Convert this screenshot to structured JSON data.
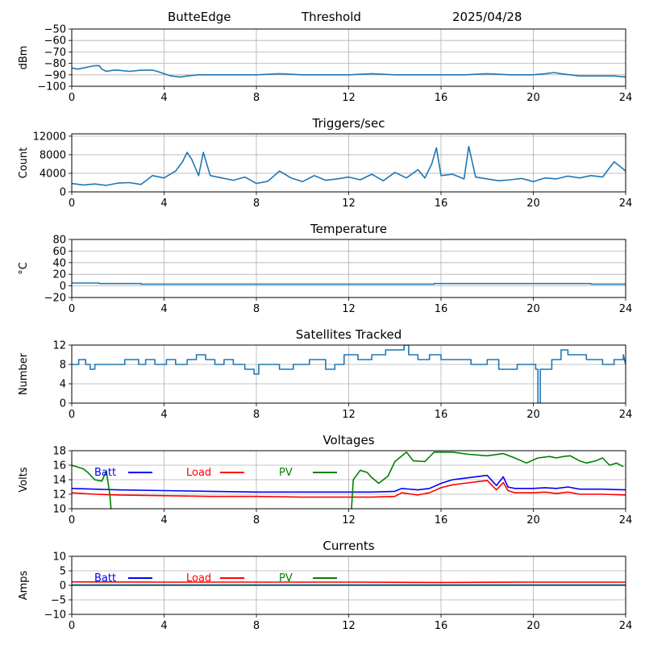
{
  "header": {
    "station": "ButteEdge",
    "mode": "Threshold",
    "date": "2025/04/28"
  },
  "chart_data": [
    {
      "type": "line",
      "title": "",
      "ylabel": "dBm",
      "xlabel": "",
      "xlim": [
        0,
        24
      ],
      "ylim": [
        -100,
        -50
      ],
      "xticks": [
        0,
        4,
        8,
        12,
        16,
        20,
        24
      ],
      "yticks": [
        -100,
        -90,
        -80,
        -70,
        -60,
        -50
      ],
      "grid": true,
      "series": [
        {
          "name": "",
          "color": "#1f77b4",
          "x": [
            0,
            0.25,
            0.5,
            0.75,
            1.0,
            1.2,
            1.3,
            1.5,
            1.8,
            2.0,
            2.5,
            3.0,
            3.5,
            3.7,
            4.0,
            4.3,
            4.7,
            5.0,
            5.5,
            6,
            7,
            8,
            9,
            10,
            11,
            12,
            13,
            14,
            15,
            16,
            17,
            18,
            19,
            20,
            20.5,
            20.9,
            21.2,
            21.6,
            22,
            23,
            23.5,
            24
          ],
          "y": [
            -84,
            -85,
            -84,
            -83,
            -82,
            -82,
            -85,
            -87,
            -86,
            -86,
            -87,
            -86,
            -86,
            -87,
            -89,
            -91,
            -92,
            -91,
            -90,
            -90,
            -90,
            -90,
            -89,
            -90,
            -90,
            -90,
            -89,
            -90,
            -90,
            -90,
            -90,
            -89,
            -90,
            -90,
            -89,
            -88,
            -89,
            -90,
            -91,
            -91,
            -91,
            -92
          ]
        }
      ]
    },
    {
      "type": "line",
      "title": "Triggers/sec",
      "ylabel": "Count",
      "xlabel": "",
      "xlim": [
        0,
        24
      ],
      "ylim": [
        0,
        12500
      ],
      "xticks": [
        0,
        4,
        8,
        12,
        16,
        20,
        24
      ],
      "yticks": [
        0,
        4000,
        8000,
        12000
      ],
      "grid": true,
      "series": [
        {
          "name": "",
          "color": "#1f77b4",
          "x": [
            0,
            0.5,
            1,
            1.5,
            2,
            2.5,
            3,
            3.5,
            4,
            4.5,
            4.8,
            5,
            5.2,
            5.5,
            5.7,
            6,
            6.5,
            7,
            7.5,
            8,
            8.5,
            9,
            9.5,
            10,
            10.5,
            11,
            11.5,
            12,
            12.5,
            13,
            13.5,
            14,
            14.5,
            15,
            15.3,
            15.6,
            15.8,
            16,
            16.5,
            17,
            17.2,
            17.5,
            18,
            18.5,
            19,
            19.5,
            20,
            20.5,
            21,
            21.5,
            22,
            22.5,
            23,
            23.5,
            24
          ],
          "y": [
            1800,
            1500,
            1700,
            1400,
            1900,
            2000,
            1600,
            3500,
            3000,
            4500,
            6500,
            8500,
            7000,
            3500,
            8500,
            3500,
            3000,
            2500,
            3200,
            1800,
            2300,
            4500,
            3000,
            2200,
            3500,
            2500,
            2800,
            3200,
            2600,
            3800,
            2400,
            4200,
            3000,
            4800,
            3000,
            6000,
            9500,
            3500,
            3800,
            2800,
            9800,
            3200,
            2800,
            2400,
            2600,
            2900,
            2200,
            3000,
            2800,
            3400,
            3000,
            3500,
            3200,
            6500,
            4500
          ]
        }
      ]
    },
    {
      "type": "line",
      "title": "Temperature",
      "ylabel": "°C",
      "xlabel": "",
      "xlim": [
        0,
        24
      ],
      "ylim": [
        -20,
        80
      ],
      "xticks": [
        0,
        4,
        8,
        12,
        16,
        20,
        24
      ],
      "yticks": [
        -20,
        0,
        20,
        40,
        60,
        80
      ],
      "grid": true,
      "series": [
        {
          "name": "",
          "color": "#1f77b4",
          "x": [
            0,
            1.2,
            1.2,
            3,
            3,
            15.7,
            15.7,
            22.5,
            22.5,
            24
          ],
          "y": [
            5,
            5,
            4,
            4,
            3,
            3,
            4,
            4,
            3,
            3
          ]
        }
      ]
    },
    {
      "type": "line",
      "title": "Satellites Tracked",
      "ylabel": "Number",
      "xlabel": "",
      "xlim": [
        0,
        24
      ],
      "ylim": [
        0,
        12
      ],
      "xticks": [
        0,
        4,
        8,
        12,
        16,
        20,
        24
      ],
      "yticks": [
        0,
        4,
        8,
        12
      ],
      "grid": true,
      "series": [
        {
          "name": "",
          "color": "#1f77b4",
          "x": [
            0,
            0.3,
            0.3,
            0.6,
            0.6,
            0.8,
            0.8,
            1.0,
            1.0,
            2.3,
            2.3,
            2.9,
            2.9,
            3.2,
            3.2,
            3.6,
            3.6,
            4.1,
            4.1,
            4.5,
            4.5,
            5.0,
            5.0,
            5.4,
            5.4,
            5.8,
            5.8,
            6.2,
            6.2,
            6.6,
            6.6,
            7.0,
            7.0,
            7.5,
            7.5,
            7.9,
            7.9,
            8.1,
            8.1,
            9.0,
            9.0,
            9.6,
            9.6,
            10.3,
            10.3,
            11.0,
            11.0,
            11.4,
            11.4,
            11.8,
            11.8,
            12.4,
            12.4,
            13.0,
            13.0,
            13.6,
            13.6,
            14.4,
            14.4,
            14.6,
            14.6,
            15.0,
            15.0,
            15.5,
            15.5,
            16.0,
            16.0,
            17.3,
            17.3,
            18.0,
            18.0,
            18.5,
            18.5,
            19.3,
            19.3,
            20.1,
            20.1,
            20.2,
            20.2,
            20.3,
            20.3,
            20.8,
            20.8,
            21.2,
            21.2,
            21.5,
            21.5,
            22.3,
            22.3,
            23.0,
            23.0,
            23.5,
            23.5,
            23.9,
            23.9,
            24
          ],
          "y": [
            8,
            8,
            9,
            9,
            8,
            8,
            7,
            7,
            8,
            8,
            9,
            9,
            8,
            8,
            9,
            9,
            8,
            8,
            9,
            9,
            8,
            8,
            9,
            9,
            10,
            10,
            9,
            9,
            8,
            8,
            9,
            9,
            8,
            8,
            7,
            7,
            6,
            6,
            8,
            8,
            7,
            7,
            8,
            8,
            9,
            9,
            7,
            7,
            8,
            8,
            10,
            10,
            9,
            9,
            10,
            10,
            11,
            11,
            12,
            12,
            10,
            10,
            9,
            9,
            10,
            10,
            9,
            9,
            8,
            8,
            9,
            9,
            7,
            7,
            8,
            8,
            7,
            7,
            0,
            0,
            7,
            7,
            9,
            9,
            11,
            11,
            10,
            10,
            9,
            9,
            8,
            8,
            9,
            9,
            10,
            8
          ]
        }
      ]
    },
    {
      "type": "line",
      "title": "Voltages",
      "ylabel": "Volts",
      "xlabel": "",
      "xlim": [
        0,
        24
      ],
      "ylim": [
        10,
        18
      ],
      "xticks": [
        0,
        4,
        8,
        12,
        16,
        20,
        24
      ],
      "yticks": [
        10,
        12,
        14,
        16,
        18
      ],
      "grid": true,
      "legend": "inside-top-left",
      "series": [
        {
          "name": "Batt",
          "color": "#0000ff",
          "x": [
            0,
            1,
            2,
            4,
            6,
            8,
            10,
            12,
            13,
            14,
            14.3,
            15,
            15.5,
            16,
            16.5,
            17,
            18,
            18.4,
            18.7,
            18.9,
            19.2,
            20,
            20.5,
            21,
            21.5,
            22,
            22.5,
            23,
            24
          ],
          "y": [
            12.8,
            12.7,
            12.6,
            12.5,
            12.4,
            12.3,
            12.3,
            12.3,
            12.3,
            12.4,
            12.8,
            12.6,
            12.8,
            13.5,
            14.0,
            14.2,
            14.6,
            13.2,
            14.4,
            13.0,
            12.8,
            12.8,
            12.9,
            12.8,
            13.0,
            12.7,
            12.7,
            12.7,
            12.6
          ]
        },
        {
          "name": "Load",
          "color": "#ff0000",
          "x": [
            0,
            1,
            2,
            4,
            6,
            8,
            10,
            12,
            13,
            14,
            14.3,
            15,
            15.5,
            16,
            16.5,
            17,
            18,
            18.4,
            18.7,
            18.9,
            19.2,
            20,
            20.5,
            21,
            21.5,
            22,
            22.5,
            23,
            24
          ],
          "y": [
            12.2,
            12.0,
            11.9,
            11.8,
            11.7,
            11.7,
            11.6,
            11.6,
            11.6,
            11.7,
            12.2,
            11.9,
            12.2,
            12.9,
            13.3,
            13.5,
            13.9,
            12.6,
            13.6,
            12.5,
            12.2,
            12.2,
            12.3,
            12.1,
            12.3,
            12.0,
            12.0,
            12.0,
            11.9
          ]
        },
        {
          "name": "PV",
          "color": "#008000",
          "x": [
            0,
            0.5,
            0.7,
            1.0,
            1.3,
            1.5,
            1.65,
            1.7,
            1.8,
            12.1,
            12.2,
            12.5,
            12.8,
            13.0,
            13.3,
            13.7,
            14.0,
            14.5,
            14.8,
            15.3,
            15.7,
            16.5,
            17.2,
            18.0,
            18.7,
            19.2,
            19.7,
            20.2,
            20.7,
            21.0,
            21.3,
            21.6,
            22.0,
            22.3,
            22.7,
            23.0,
            23.3,
            23.6,
            23.9
          ],
          "y": [
            16.0,
            15.5,
            15.0,
            14.0,
            13.8,
            15.2,
            12.0,
            10.0,
            9.0,
            9.0,
            14.0,
            15.3,
            15.0,
            14.3,
            13.5,
            14.5,
            16.5,
            17.8,
            16.6,
            16.5,
            17.8,
            17.8,
            17.5,
            17.3,
            17.6,
            17.0,
            16.3,
            17.0,
            17.2,
            17.0,
            17.2,
            17.3,
            16.6,
            16.3,
            16.6,
            17.0,
            16.0,
            16.3,
            15.8
          ]
        }
      ]
    },
    {
      "type": "line",
      "title": "Currents",
      "ylabel": "Amps",
      "xlabel": "",
      "xlim": [
        0,
        24
      ],
      "ylim": [
        -10,
        10
      ],
      "xticks": [
        0,
        4,
        8,
        12,
        16,
        20,
        24
      ],
      "yticks": [
        -10,
        -5,
        0,
        5,
        10
      ],
      "grid": true,
      "legend": "inside-top-left",
      "series": [
        {
          "name": "Batt",
          "color": "#0000ff",
          "x": [
            0,
            24
          ],
          "y": [
            0.1,
            0.1
          ]
        },
        {
          "name": "Load",
          "color": "#ff0000",
          "x": [
            0,
            4,
            8,
            12,
            16,
            20,
            24
          ],
          "y": [
            1.2,
            1.1,
            1.1,
            1.1,
            1.0,
            1.1,
            1.1
          ]
        },
        {
          "name": "PV",
          "color": "#008000",
          "x": [
            0,
            24
          ],
          "y": [
            0,
            0
          ]
        }
      ]
    }
  ]
}
